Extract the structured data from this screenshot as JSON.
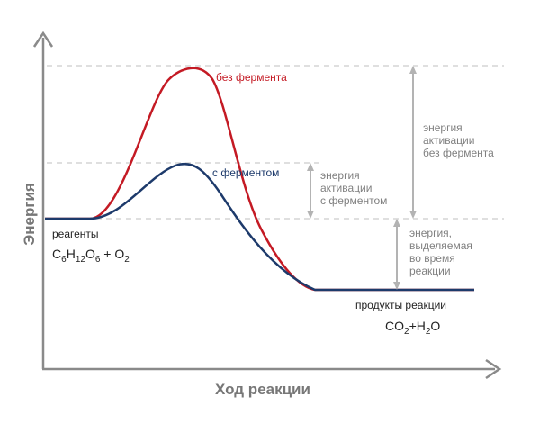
{
  "axes": {
    "x_label": "Ход реакции",
    "y_label": "Энергия"
  },
  "curves": {
    "no_enzyme_label": "без фермента",
    "with_enzyme_label": "с ферментом",
    "no_enzyme_color": "#c41a24",
    "with_enzyme_color": "#1d3a6b"
  },
  "reactants": {
    "label": "реагенты",
    "formula": {
      "c": "C",
      "c_sub": "6",
      "h": "H",
      "h_sub": "12",
      "o": "O",
      "o_sub": "6",
      "plus_o2": " + O",
      "o2_sub": "2"
    }
  },
  "products": {
    "label": "продукты реакции",
    "formula": {
      "co": "CO",
      "co_sub": "2",
      "plus_h": "+H",
      "h_sub": "2",
      "o": "O"
    }
  },
  "annotations": {
    "activation_with_enzyme": [
      "энергия",
      "активации",
      "с ферментом"
    ],
    "activation_no_enzyme": [
      "энергия",
      "активации",
      "без фермента"
    ],
    "energy_released": [
      "энергия,",
      "выделяемая",
      "во время",
      "реакции"
    ]
  },
  "colors": {
    "axis": "#8a8a8a",
    "guide": "#cccccc",
    "arrow": "#b3b3b3"
  }
}
